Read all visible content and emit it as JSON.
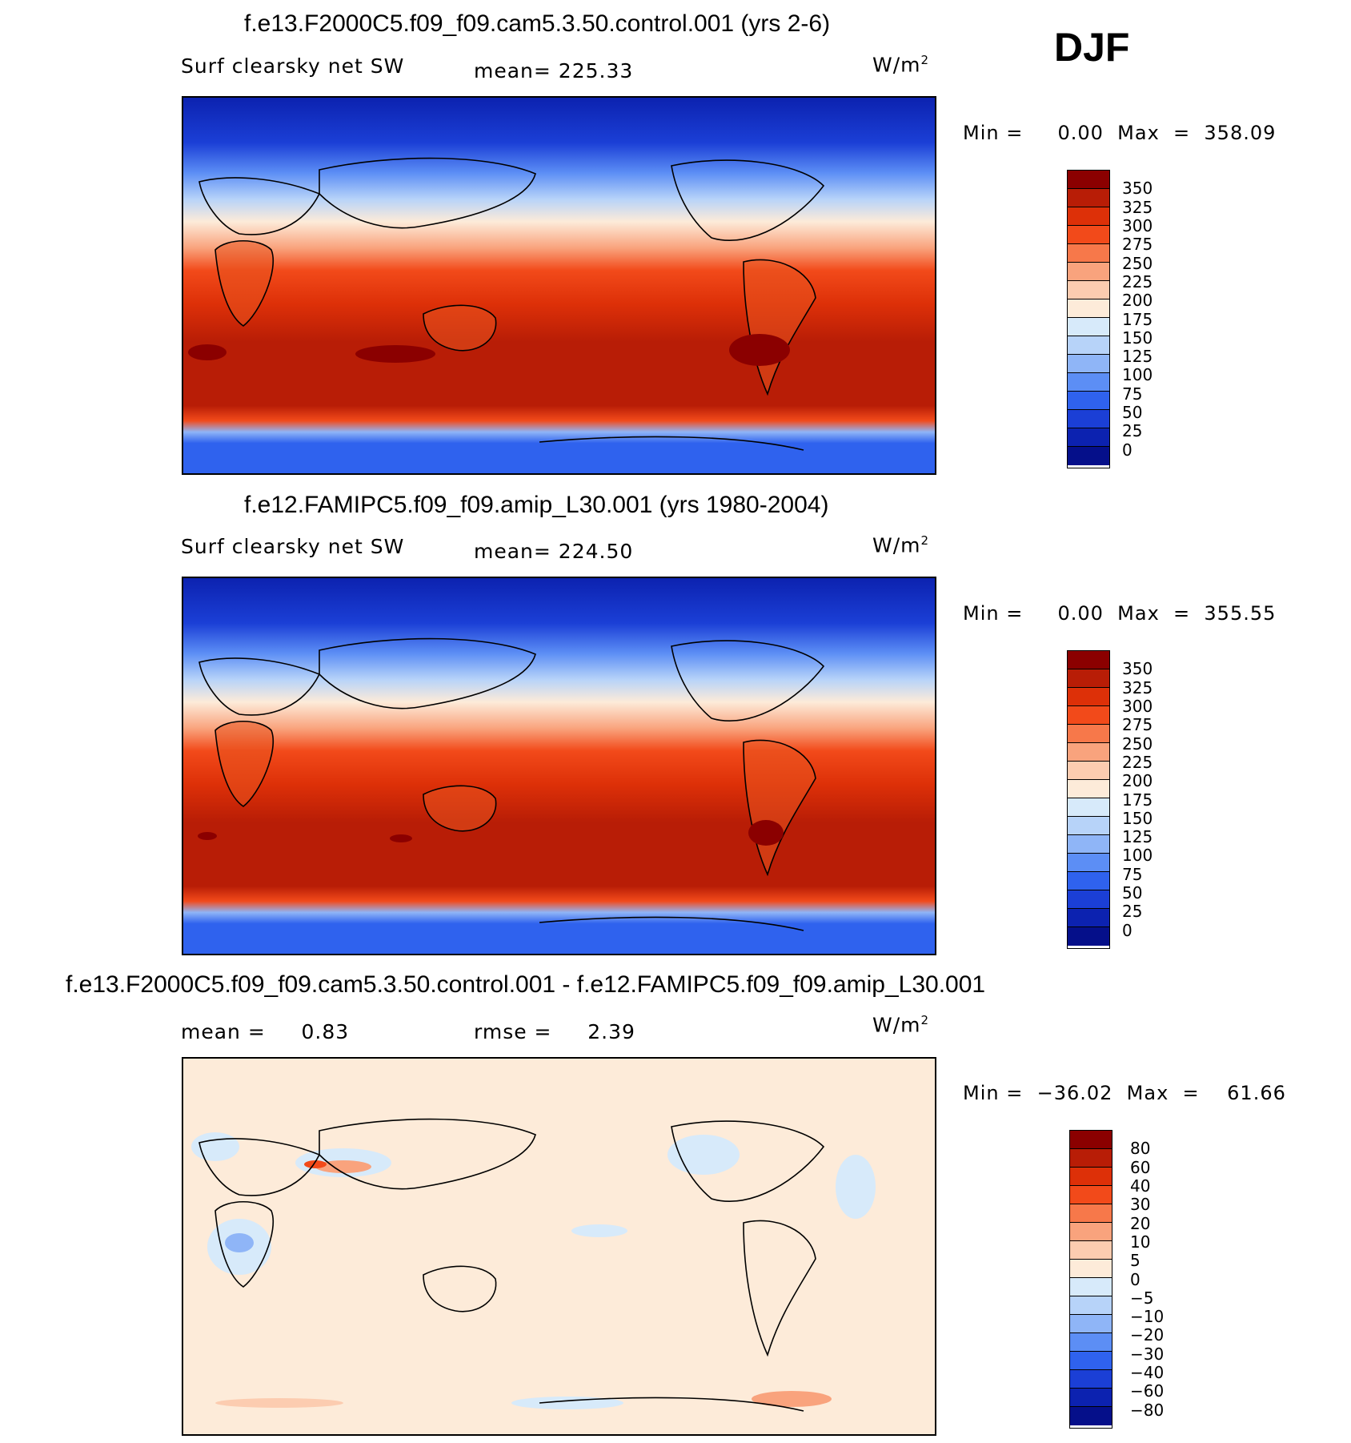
{
  "season": "DJF",
  "panels": [
    {
      "title": "f.e13.F2000C5.f09_f09.cam5.3.50.control.001 (yrs 2-6)",
      "variable": "Surf clearsky net SW",
      "stat_left": "mean= 225.33",
      "stat_right": "",
      "units_base": "W/m",
      "units_exp": "2",
      "minmax": "Min =     0.00  Max  =  358.09",
      "colorbar_labels": [
        "350",
        "325",
        "300",
        "275",
        "250",
        "225",
        "200",
        "175",
        "150",
        "125",
        "100",
        "75",
        "50",
        "25",
        "0"
      ],
      "colorbar_colors": [
        "#8b0000",
        "#b81d06",
        "#dd3008",
        "#f24a1a",
        "#f7784a",
        "#f9a37d",
        "#fcccb0",
        "#fdebd9",
        "#d7eafa",
        "#b7d3f9",
        "#8fb5f7",
        "#5c8ef5",
        "#2f62ee",
        "#1b3fd6",
        "#0c22b0",
        "#050f8a"
      ]
    },
    {
      "title": "f.e12.FAMIPC5.f09_f09.amip_L30.001 (yrs 1980-2004)",
      "variable": "Surf clearsky net SW",
      "stat_left": "mean= 224.50",
      "stat_right": "",
      "units_base": "W/m",
      "units_exp": "2",
      "minmax": "Min =     0.00  Max  =  355.55",
      "colorbar_labels": [
        "350",
        "325",
        "300",
        "275",
        "250",
        "225",
        "200",
        "175",
        "150",
        "125",
        "100",
        "75",
        "50",
        "25",
        "0"
      ],
      "colorbar_colors": [
        "#8b0000",
        "#b81d06",
        "#dd3008",
        "#f24a1a",
        "#f7784a",
        "#f9a37d",
        "#fcccb0",
        "#fdebd9",
        "#d7eafa",
        "#b7d3f9",
        "#8fb5f7",
        "#5c8ef5",
        "#2f62ee",
        "#1b3fd6",
        "#0c22b0",
        "#050f8a"
      ]
    },
    {
      "title": "f.e13.F2000C5.f09_f09.cam5.3.50.control.001 - f.e12.FAMIPC5.f09_f09.amip_L30.001",
      "variable": "mean =     0.83",
      "stat_left": "",
      "stat_right": "rmse =     2.39",
      "units_base": "W/m",
      "units_exp": "2",
      "minmax": "Min =  −36.02  Max  =    61.66",
      "colorbar_labels": [
        "80",
        "60",
        "40",
        "30",
        "20",
        "10",
        "5",
        "0",
        "−5",
        "−10",
        "−20",
        "−30",
        "−40",
        "−60",
        "−80"
      ],
      "colorbar_colors": [
        "#8b0000",
        "#b81d06",
        "#dd3008",
        "#f24a1a",
        "#f7784a",
        "#f9a37d",
        "#fcccb0",
        "#fdebd9",
        "#d7eafa",
        "#b7d3f9",
        "#8fb5f7",
        "#5c8ef5",
        "#2f62ee",
        "#1b3fd6",
        "#0c22b0",
        "#050f8a"
      ]
    }
  ],
  "chart_data": [
    {
      "type": "heatmap",
      "title": "f.e13.F2000C5.f09_f09.cam5.3.50.control.001 (yrs 2-6)",
      "variable": "Surf clearsky net SW",
      "units": "W/m2",
      "mean": 225.33,
      "min": 0.0,
      "max": 358.09,
      "colorbar_levels": [
        0,
        25,
        50,
        75,
        100,
        125,
        150,
        175,
        200,
        225,
        250,
        275,
        300,
        325,
        350
      ]
    },
    {
      "type": "heatmap",
      "title": "f.e12.FAMIPC5.f09_f09.amip_L30.001 (yrs 1980-2004)",
      "variable": "Surf clearsky net SW",
      "units": "W/m2",
      "mean": 224.5,
      "min": 0.0,
      "max": 355.55,
      "colorbar_levels": [
        0,
        25,
        50,
        75,
        100,
        125,
        150,
        175,
        200,
        225,
        250,
        275,
        300,
        325,
        350
      ]
    },
    {
      "type": "heatmap",
      "title": "f.e13.F2000C5.f09_f09.cam5.3.50.control.001 - f.e12.FAMIPC5.f09_f09.amip_L30.001",
      "units": "W/m2",
      "mean": 0.83,
      "rmse": 2.39,
      "min": -36.02,
      "max": 61.66,
      "colorbar_levels": [
        -80,
        -60,
        -40,
        -30,
        -20,
        -10,
        -5,
        0,
        5,
        10,
        20,
        30,
        40,
        60,
        80
      ]
    }
  ]
}
